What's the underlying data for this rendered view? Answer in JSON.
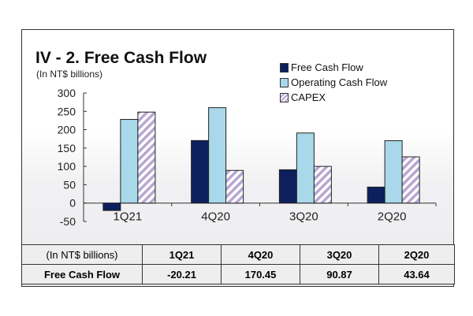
{
  "chart_data": {
    "type": "bar",
    "title": "IV - 2. Free Cash Flow",
    "subtitle": "(In NT$ billions)",
    "categories": [
      "1Q21",
      "4Q20",
      "3Q20",
      "2Q20"
    ],
    "series": [
      {
        "name": "Free Cash Flow",
        "values": [
          -20.21,
          170.45,
          90.87,
          43.64
        ],
        "color": "#0d1f5c",
        "pattern": "solid"
      },
      {
        "name": "Operating Cash Flow",
        "values": [
          228,
          260,
          191,
          170
        ],
        "color": "#a9d8ea",
        "pattern": "solid"
      },
      {
        "name": "CAPEX",
        "values": [
          248,
          89,
          100,
          126
        ],
        "color": "#b7a6d3",
        "pattern": "hatched"
      }
    ],
    "ylim": [
      -50,
      300
    ],
    "yticks": [
      300,
      250,
      200,
      150,
      100,
      50,
      0,
      -50
    ],
    "legend_position": "top-right",
    "grid": false
  },
  "table": {
    "header": [
      "(In NT$ billions)",
      "1Q21",
      "4Q20",
      "3Q20",
      "2Q20"
    ],
    "rows": [
      [
        "Free Cash Flow",
        "-20.21",
        "170.45",
        "90.87",
        "43.64"
      ]
    ]
  }
}
